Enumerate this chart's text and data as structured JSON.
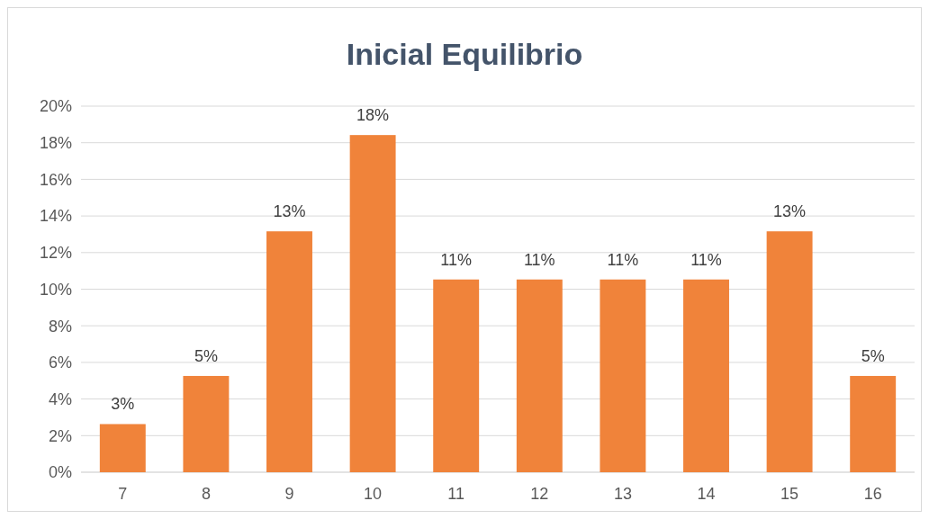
{
  "chart_data": {
    "type": "bar",
    "title": "Inicial Equilibrio",
    "categories": [
      "7",
      "8",
      "9",
      "10",
      "11",
      "12",
      "13",
      "14",
      "15",
      "16"
    ],
    "values": [
      2.63,
      5.26,
      13.16,
      18.42,
      10.53,
      10.53,
      10.53,
      10.53,
      13.16,
      5.26
    ],
    "value_labels": [
      "3%",
      "5%",
      "13%",
      "18%",
      "11%",
      "11%",
      "11%",
      "11%",
      "13%",
      "5%"
    ],
    "color": "#f0833a",
    "ylim": [
      0,
      20
    ],
    "yticks": [
      {
        "value": 0,
        "label": "0%"
      },
      {
        "value": 2,
        "label": "2%"
      },
      {
        "value": 4,
        "label": "4%"
      },
      {
        "value": 6,
        "label": "6%"
      },
      {
        "value": 8,
        "label": "8%"
      },
      {
        "value": 10,
        "label": "10%"
      },
      {
        "value": 12,
        "label": "12%"
      },
      {
        "value": 14,
        "label": "14%"
      },
      {
        "value": 16,
        "label": "16%"
      },
      {
        "value": 18,
        "label": "18%"
      },
      {
        "value": 20,
        "label": "20%"
      }
    ],
    "grid": "y"
  }
}
